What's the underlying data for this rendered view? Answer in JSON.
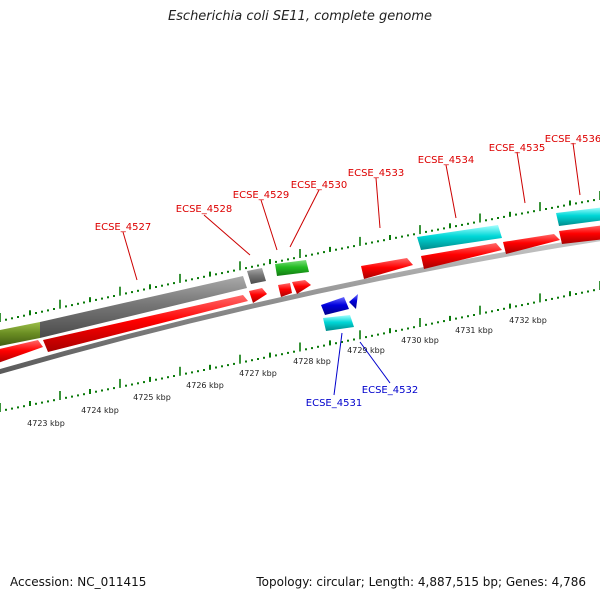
{
  "title": "Escherichia coli SE11, complete genome",
  "footer": {
    "accession": "Accession: NC_011415",
    "summary": "Topology: circular; Length: 4,887,515 bp; Genes: 4,786"
  },
  "colors": {
    "backbone": "#8c8c8c",
    "gene_red": "#ff0000",
    "gene_gray": "#777777",
    "gene_olive": "#6b8e23",
    "gene_green": "#22bb22",
    "gene_blue": "#0000dd",
    "gene_cyan": "#00d7d7",
    "tick_green": "#0a7a0a",
    "label_red": "#dd0000",
    "label_blue": "#0000cc"
  },
  "scale": {
    "unit": "kbp",
    "labels": [
      "4723 kbp",
      "4724 kbp",
      "4725 kbp",
      "4726 kbp",
      "4727 kbp",
      "4728 kbp",
      "4729 kbp",
      "4730 kbp",
      "4731 kbp",
      "4732 kbp"
    ]
  },
  "gene_labels": {
    "forward": [
      "ECSE_4527",
      "ECSE_4528",
      "ECSE_4529",
      "ECSE_4530",
      "ECSE_4533",
      "ECSE_4534",
      "ECSE_4535",
      "ECSE_4536"
    ],
    "reverse": [
      "ECSE_4531",
      "ECSE_4532"
    ]
  }
}
